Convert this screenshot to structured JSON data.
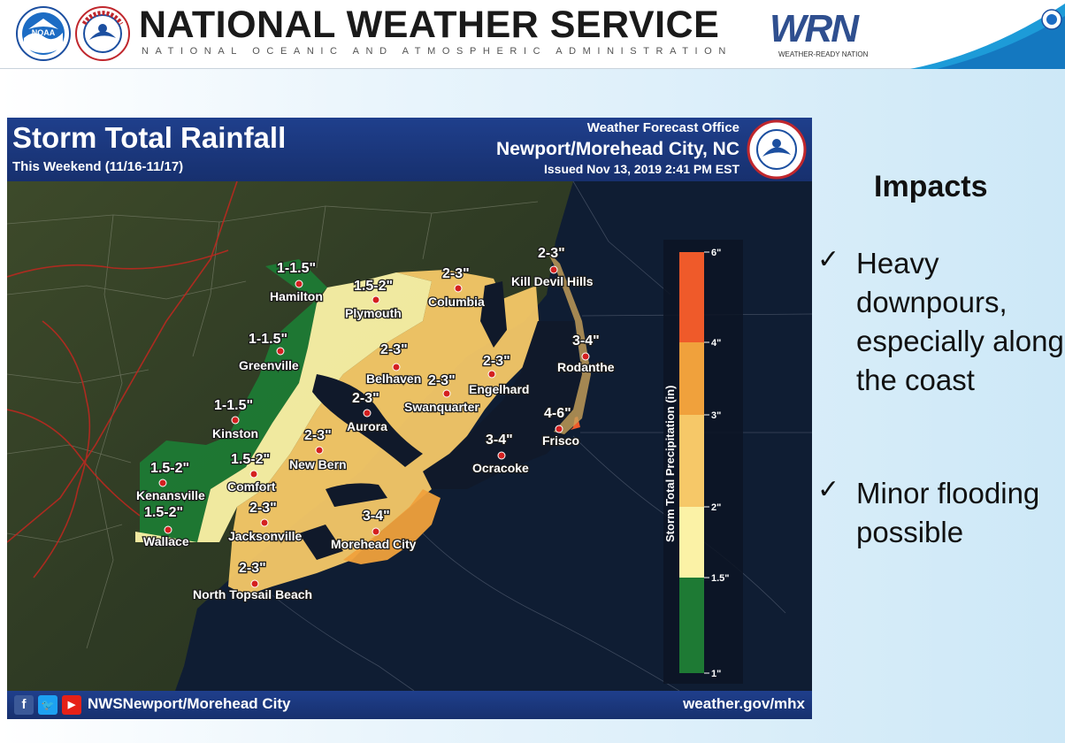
{
  "header": {
    "agency_title": "NATIONAL WEATHER SERVICE",
    "agency_subtitle": "NATIONAL OCEANIC AND ATMOSPHERIC ADMINISTRATION",
    "wrn_mark": "WRN",
    "wrn_tagline": "WEATHER-READY NATION",
    "icons": [
      "noaa-logo-icon",
      "nws-seal-icon",
      "wrn-logo-icon"
    ]
  },
  "map": {
    "title": "Storm Total Rainfall",
    "period": "This Weekend (11/16-11/17)",
    "office_label": "Weather Forecast Office",
    "office_name": "Newport/Morehead City, NC",
    "issued": "Issued Nov 13, 2019 2:41 PM EST",
    "footer_handle": "NWSNewport/Morehead City",
    "footer_site": "weather.gov/mhx",
    "colors": {
      "band_1_15": "#1e7a34",
      "band_15_2": "#fbf2a6",
      "band_2_3": "#f6c868",
      "band_3_4": "#f0a13c",
      "band_4_6": "#ef5a2a",
      "city_marker": "#d42020"
    },
    "amount_labels": [
      "1-1.5\"",
      "1.5-2\"",
      "2-3\"",
      "2-3\"",
      "3-4\"",
      "1-1.5\"",
      "2-3\"",
      "2-3\"",
      "2-3\"",
      "2-3\"",
      "1-1.5\"",
      "4-6\"",
      "2-3\"",
      "3-4\"",
      "1.5-2\"",
      "1.5-2\"",
      "2-3\"",
      "1.5-2\"",
      "3-4\"",
      "2-3\""
    ],
    "cities": [
      "Hamilton",
      "Plymouth",
      "Columbia",
      "Kill Devil Hills",
      "Rodanthe",
      "Greenville",
      "Belhaven",
      "Engelhard",
      "Swanquarter",
      "Aurora",
      "Kinston",
      "Frisco",
      "New Bern",
      "Ocracoke",
      "Comfort",
      "Kenansville",
      "Jacksonville",
      "Wallace",
      "Morehead City",
      "North Topsail Beach"
    ],
    "legend": {
      "title": "Storm Total Precipitation (in)",
      "ticks": [
        "6\"",
        "4\"",
        "3\"",
        "2\"",
        "1.5\"",
        "1\""
      ]
    }
  },
  "impacts": {
    "title": "Impacts",
    "items": [
      "Heavy downpours, especially along the coast",
      "Minor flooding possible"
    ],
    "bullet": "✓"
  }
}
